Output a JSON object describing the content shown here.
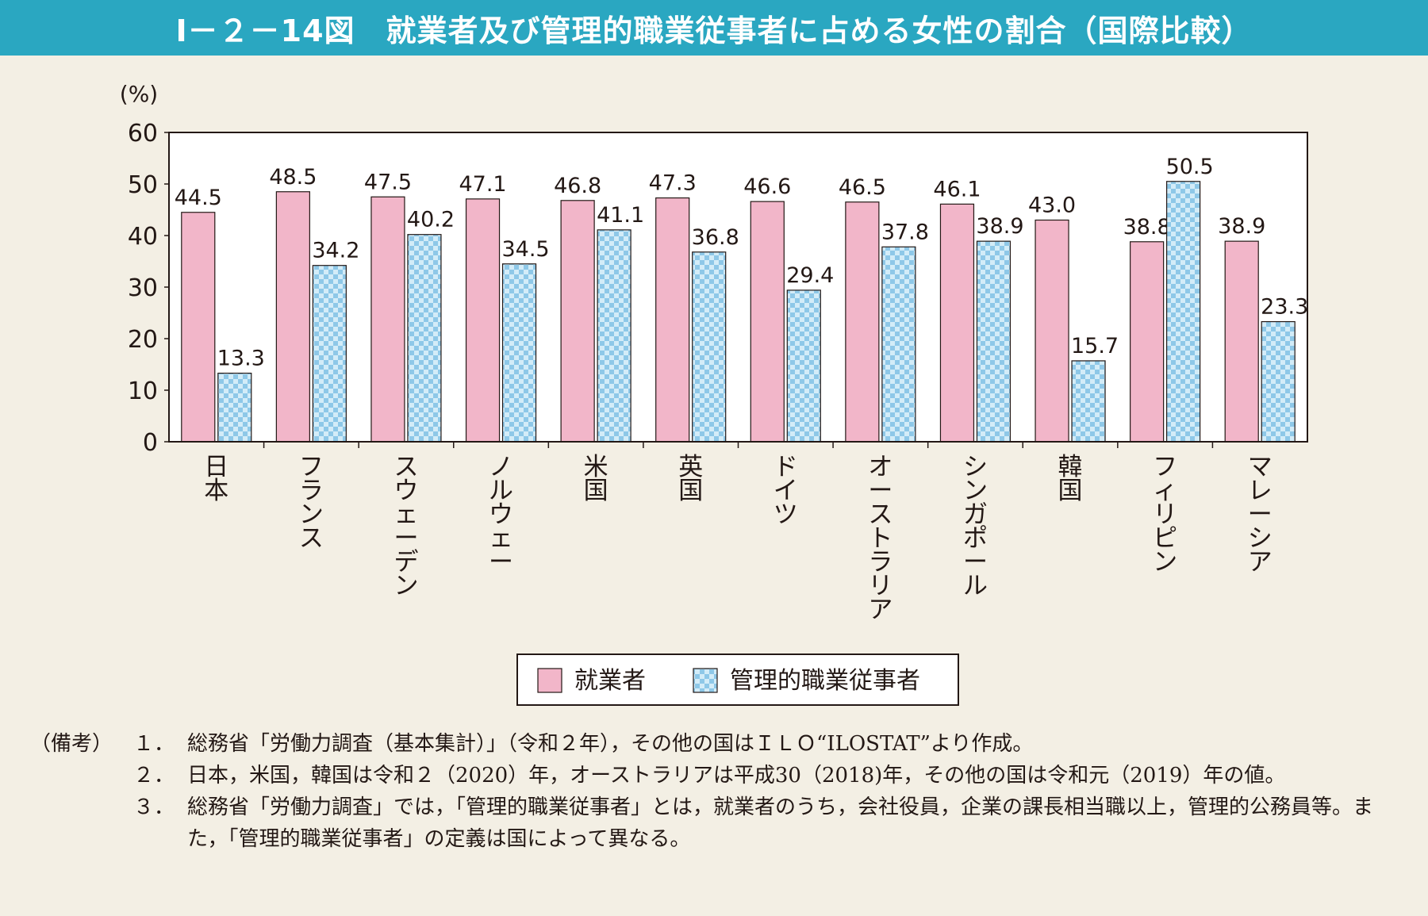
{
  "title": "Ⅰ－２－14図　就業者及び管理的職業従事者に占める女性の割合（国際比較）",
  "colors": {
    "header_bg": "#2aa7c1",
    "page_bg": "#f3efe4",
    "employed_fill": "#f2b6c9",
    "manager_fill": "#cfe9f7",
    "manager_pattern_dot": "#6fb6df"
  },
  "chart_data": {
    "type": "bar",
    "title": "",
    "ylabel": "(%)",
    "xlabel": "",
    "ylim": [
      0,
      60
    ],
    "yticks": [
      "0",
      "10",
      "20",
      "30",
      "40",
      "50",
      "60"
    ],
    "grid": false,
    "legend_position": "bottom-center",
    "categories": [
      "日本",
      "フランス",
      "スウェーデン",
      "ノルウェー",
      "米国",
      "英国",
      "ドイツ",
      "オーストラリア",
      "シンガポール",
      "韓国",
      "フィリピン",
      "マレーシア"
    ],
    "series": [
      {
        "name": "就業者",
        "values": [
          44.5,
          48.5,
          47.5,
          47.1,
          46.8,
          47.3,
          46.6,
          46.5,
          46.1,
          43.0,
          38.8,
          38.9
        ],
        "labels": [
          "44.5",
          "48.5",
          "47.5",
          "47.1",
          "46.8",
          "47.3",
          "46.6",
          "46.5",
          "46.1",
          "43.0",
          "38.8",
          "38.9"
        ]
      },
      {
        "name": "管理的職業従事者",
        "values": [
          13.3,
          34.2,
          40.2,
          34.5,
          41.1,
          36.8,
          29.4,
          37.8,
          38.9,
          15.7,
          50.5,
          23.3
        ],
        "labels": [
          "13.3",
          "34.2",
          "40.2",
          "34.5",
          "41.1",
          "36.8",
          "29.4",
          "37.8",
          "38.9",
          "15.7",
          "50.5",
          "23.3"
        ]
      }
    ]
  },
  "notes": {
    "head": "（備考）",
    "items": [
      {
        "num": "１．",
        "text": "総務省「労働力調査（基本集計）」（令和２年），その他の国はＩＬＯ“ILOSTAT”より作成。"
      },
      {
        "num": "２．",
        "text": "日本，米国，韓国は令和２（2020）年，オーストラリアは平成30（2018)年，その他の国は令和元（2019）年の値。"
      },
      {
        "num": "３．",
        "text": "総務省「労働力調査」では，「管理的職業従事者」とは，就業者のうち，会社役員，企業の課長相当職以上，管理的公務員等。また，「管理的職業従事者」の定義は国によって異なる。"
      }
    ]
  }
}
